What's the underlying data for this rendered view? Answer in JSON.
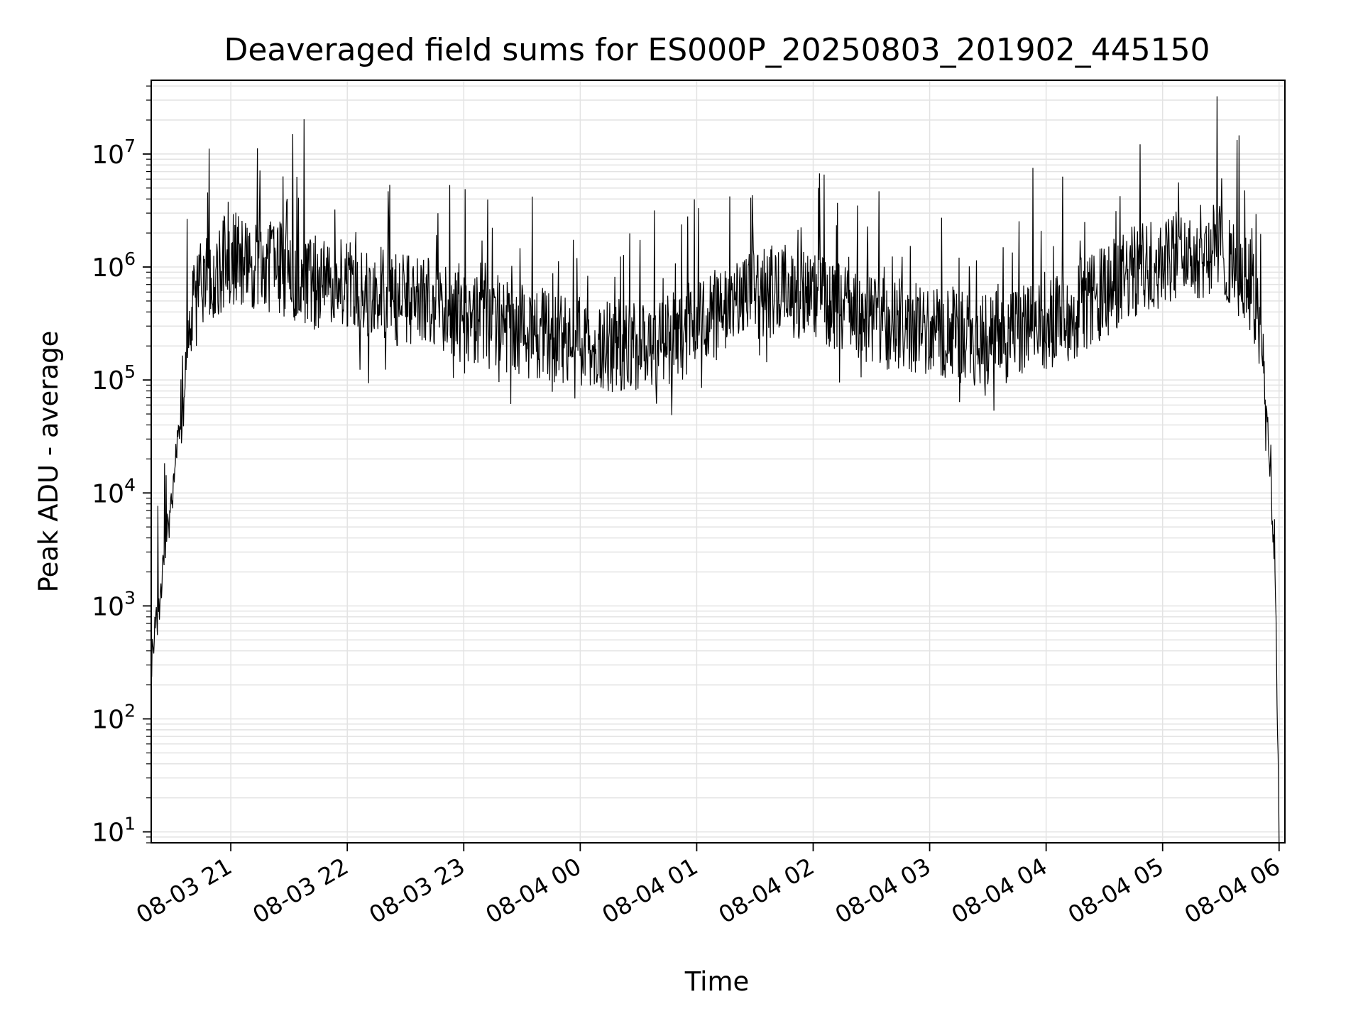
{
  "chart_data": {
    "type": "line",
    "title": "Deaveraged field sums for ES000P_20250803_201902_445150",
    "xlabel": "Time",
    "ylabel": "Peak ADU - average",
    "yscale": "log",
    "ylim": [
      8,
      45000000
    ],
    "xlim": [
      "2025-08-03 20:19",
      "2025-08-04 06:03"
    ],
    "grid": true,
    "line_color": "#000000",
    "x_ticks": [
      {
        "time": "2025-08-03 21:00",
        "label": "08-03 21"
      },
      {
        "time": "2025-08-03 22:00",
        "label": "08-03 22"
      },
      {
        "time": "2025-08-03 23:00",
        "label": "08-03 23"
      },
      {
        "time": "2025-08-04 00:00",
        "label": "08-04 00"
      },
      {
        "time": "2025-08-04 01:00",
        "label": "08-04 01"
      },
      {
        "time": "2025-08-04 02:00",
        "label": "08-04 02"
      },
      {
        "time": "2025-08-04 03:00",
        "label": "08-04 03"
      },
      {
        "time": "2025-08-04 04:00",
        "label": "08-04 04"
      },
      {
        "time": "2025-08-04 05:00",
        "label": "08-04 05"
      },
      {
        "time": "2025-08-04 06:00",
        "label": "08-04 06"
      }
    ],
    "y_ticks": [
      {
        "value": 10,
        "base": "10",
        "exp": "1"
      },
      {
        "value": 100,
        "base": "10",
        "exp": "2"
      },
      {
        "value": 1000,
        "base": "10",
        "exp": "3"
      },
      {
        "value": 10000,
        "base": "10",
        "exp": "4"
      },
      {
        "value": 100000,
        "base": "10",
        "exp": "5"
      },
      {
        "value": 1000000,
        "base": "10",
        "exp": "6"
      },
      {
        "value": 10000000,
        "base": "10",
        "exp": "7"
      }
    ],
    "x": [
      "2025-08-03 20:19",
      "2025-08-03 20:25",
      "2025-08-03 20:30",
      "2025-08-03 20:35",
      "2025-08-03 20:40",
      "2025-08-03 20:45",
      "2025-08-03 20:50",
      "2025-08-03 21:00",
      "2025-08-03 21:15",
      "2025-08-03 21:30",
      "2025-08-03 21:45",
      "2025-08-03 22:00",
      "2025-08-03 22:15",
      "2025-08-03 22:30",
      "2025-08-03 22:45",
      "2025-08-03 23:00",
      "2025-08-03 23:15",
      "2025-08-03 23:30",
      "2025-08-03 23:45",
      "2025-08-04 00:00",
      "2025-08-04 00:15",
      "2025-08-04 00:30",
      "2025-08-04 00:45",
      "2025-08-04 01:00",
      "2025-08-04 01:15",
      "2025-08-04 01:30",
      "2025-08-04 01:45",
      "2025-08-04 02:00",
      "2025-08-04 02:15",
      "2025-08-04 02:30",
      "2025-08-04 02:45",
      "2025-08-04 03:00",
      "2025-08-04 03:15",
      "2025-08-04 03:30",
      "2025-08-04 03:45",
      "2025-08-04 04:00",
      "2025-08-04 04:15",
      "2025-08-04 04:30",
      "2025-08-04 04:45",
      "2025-08-04 05:00",
      "2025-08-04 05:15",
      "2025-08-04 05:30",
      "2025-08-04 05:45",
      "2025-08-04 05:50",
      "2025-08-04 05:55",
      "2025-08-04 05:58",
      "2025-08-04 05:59",
      "2025-08-04 06:00"
    ],
    "y": [
      300,
      2000,
      10000,
      80000,
      400000,
      700000,
      900000,
      1200000,
      1100000,
      900000,
      700000,
      700000,
      600000,
      500000,
      450000,
      350000,
      300000,
      280000,
      250000,
      220000,
      200000,
      210000,
      230000,
      300000,
      400000,
      550000,
      600000,
      550000,
      450000,
      350000,
      300000,
      280000,
      250000,
      220000,
      260000,
      320000,
      400000,
      600000,
      900000,
      1200000,
      1300000,
      1500000,
      700000,
      300000,
      20000,
      2000,
      100,
      10
    ]
  }
}
